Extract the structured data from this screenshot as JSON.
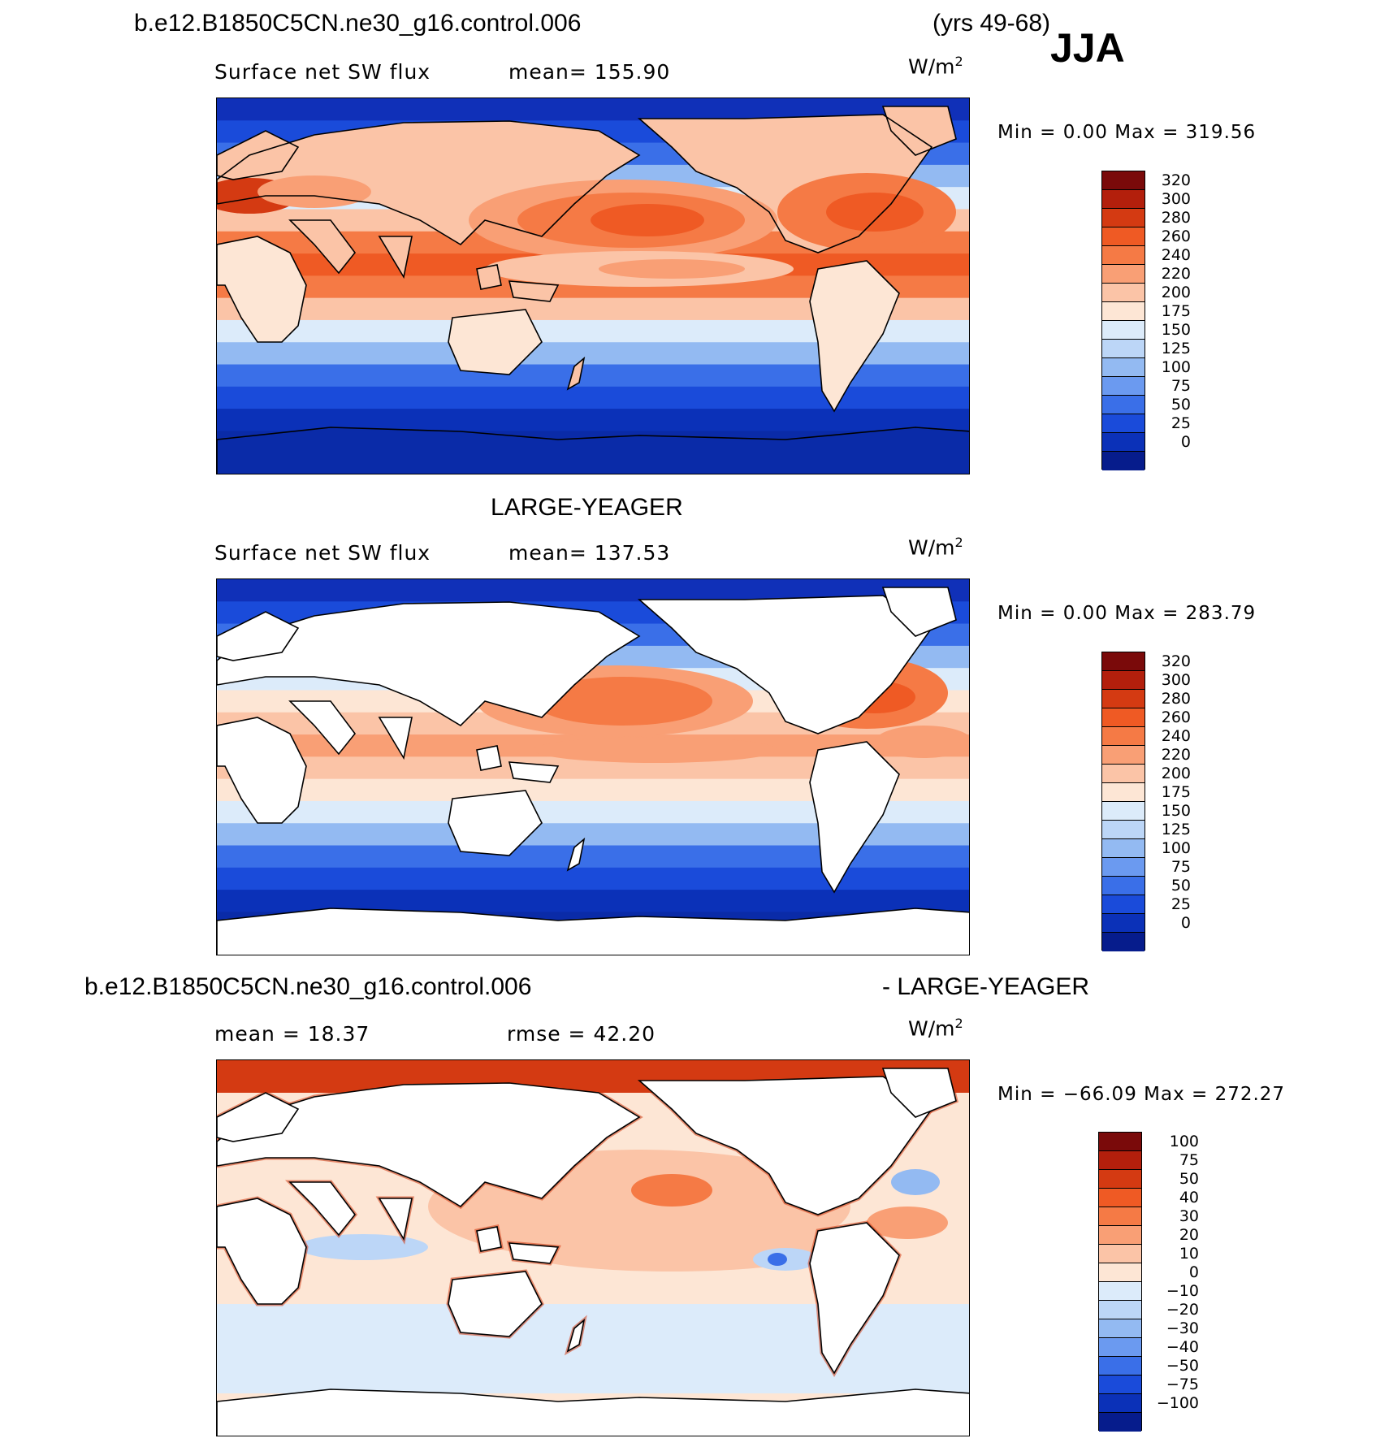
{
  "header": {
    "case_name": "b.e12.B1850C5CN.ne30_g16.control.006",
    "years": "(yrs 49-68)",
    "season": "JJA"
  },
  "panels": [
    {
      "id": "model",
      "field": "Surface net SW flux",
      "mean_label": "mean=  155.90",
      "units_base": "W/m",
      "units_exp": "2",
      "minmax": "Min =      0.00  Max  =  319.56",
      "colorbar": [
        "320",
        "300",
        "280",
        "260",
        "240",
        "220",
        "200",
        "175",
        "150",
        "125",
        "100",
        "75",
        "50",
        "25",
        "0"
      ],
      "colors": [
        "#7a0a0a",
        "#b31f0c",
        "#d43a12",
        "#ef5a24",
        "#f57a45",
        "#f99f75",
        "#fbc4a7",
        "#fde6d5",
        "#dcebfa",
        "#bcd6f7",
        "#93baf2",
        "#6b9af0",
        "#3a6fe8",
        "#1a4bda",
        "#0b31b8",
        "#061c8c"
      ],
      "ocean_zones": [
        "#1030b8",
        "#1a4bda",
        "#3a6fe8",
        "#93baf2",
        "#dcebfa",
        "#fbc4a7",
        "#f57a45",
        "#ef5a24",
        "#f57a45",
        "#fbc4a7",
        "#dcebfa",
        "#93baf2",
        "#3a6fe8",
        "#1a4bda",
        "#0b31b8",
        "#0a2ba8",
        "#0a2ba8"
      ]
    },
    {
      "id": "obs",
      "title": "LARGE-YEAGER",
      "field": "Surface net SW flux",
      "mean_label": "mean=  137.53",
      "units_base": "W/m",
      "units_exp": "2",
      "minmax": "Min =      0.00  Max  =  283.79",
      "colorbar": [
        "320",
        "300",
        "280",
        "260",
        "240",
        "220",
        "200",
        "175",
        "150",
        "125",
        "100",
        "75",
        "50",
        "25",
        "0"
      ],
      "colors": [
        "#7a0a0a",
        "#b31f0c",
        "#d43a12",
        "#ef5a24",
        "#f57a45",
        "#f99f75",
        "#fbc4a7",
        "#fde6d5",
        "#dcebfa",
        "#bcd6f7",
        "#93baf2",
        "#6b9af0",
        "#3a6fe8",
        "#1a4bda",
        "#0b31b8",
        "#061c8c"
      ]
    },
    {
      "id": "diff",
      "title_left": "b.e12.B1850C5CN.ne30_g16.control.006",
      "title_right": "- LARGE-YEAGER",
      "mean_label": "mean  =    18.37",
      "rmse_label": "rmse  =    42.20",
      "units_base": "W/m",
      "units_exp": "2",
      "minmax": "Min  =  −66.09  Max  =  272.27",
      "colorbar": [
        "100",
        "75",
        "50",
        "40",
        "30",
        "20",
        "10",
        "0",
        "−10",
        "−20",
        "−30",
        "−40",
        "−50",
        "−75",
        "−100"
      ],
      "colors": [
        "#7a0a0a",
        "#b31f0c",
        "#d43a12",
        "#ef5a24",
        "#f57a45",
        "#f99f75",
        "#fbc4a7",
        "#fde6d5",
        "#dcebfa",
        "#bcd6f7",
        "#93baf2",
        "#6b9af0",
        "#3a6fe8",
        "#1a4bda",
        "#0b31b8",
        "#061c8c"
      ]
    }
  ]
}
